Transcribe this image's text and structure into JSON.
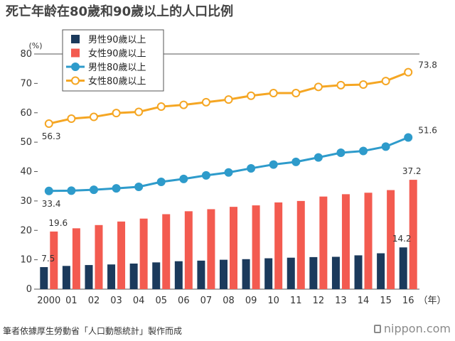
{
  "title": "死亡年龄在80歲和90歲以上的人口比例",
  "source": "筆者依據厚生勞動省「人口動態統計」製作而成",
  "brand": "nippon.com",
  "chart_data": {
    "type": "bar+line",
    "categories": [
      "2000",
      "01",
      "02",
      "03",
      "04",
      "05",
      "06",
      "07",
      "08",
      "09",
      "10",
      "11",
      "12",
      "13",
      "14",
      "15",
      "16"
    ],
    "x_unit": "（年）",
    "y_unit": "(%)",
    "ylim": [
      0,
      80
    ],
    "yticks": [
      0,
      10,
      20,
      30,
      40,
      50,
      60,
      70,
      80
    ],
    "grid": "horizontal-top-only",
    "legend_position": "top-left",
    "series": [
      {
        "name": "男性90歲以上",
        "type": "bar",
        "color": "#1b3a5c",
        "values": [
          7.5,
          7.9,
          8.2,
          8.4,
          8.7,
          9.1,
          9.5,
          9.7,
          10.0,
          10.2,
          10.5,
          10.7,
          10.9,
          11.0,
          11.5,
          12.2,
          14.2
        ],
        "labels": {
          "0": "7.5",
          "16": "14.2"
        }
      },
      {
        "name": "女性90歲以上",
        "type": "bar",
        "color": "#f35b50",
        "values": [
          19.6,
          20.7,
          21.8,
          23.0,
          24.0,
          25.5,
          26.5,
          27.2,
          28.0,
          28.5,
          29.5,
          30.0,
          31.5,
          32.3,
          32.8,
          33.7,
          37.2
        ],
        "labels": {
          "0": "19.6",
          "16": "37.2"
        }
      },
      {
        "name": "男性80歲以上",
        "type": "line",
        "color": "#2e9bcb",
        "marker": "filled-circle",
        "values": [
          33.4,
          33.5,
          33.8,
          34.3,
          34.8,
          36.5,
          37.5,
          38.7,
          39.7,
          41.1,
          42.4,
          43.3,
          44.8,
          46.4,
          47.0,
          48.5,
          51.6
        ],
        "labels": {
          "0": "33.4",
          "16": "51.6"
        }
      },
      {
        "name": "女性80歲以上",
        "type": "line",
        "color": "#f5a623",
        "marker": "open-circle",
        "values": [
          56.3,
          58.0,
          58.6,
          59.9,
          60.3,
          62.1,
          62.7,
          63.6,
          64.5,
          65.8,
          66.7,
          66.7,
          68.8,
          69.4,
          69.6,
          70.8,
          73.8
        ],
        "labels": {
          "0": "56.3",
          "16": "73.8"
        }
      }
    ]
  }
}
